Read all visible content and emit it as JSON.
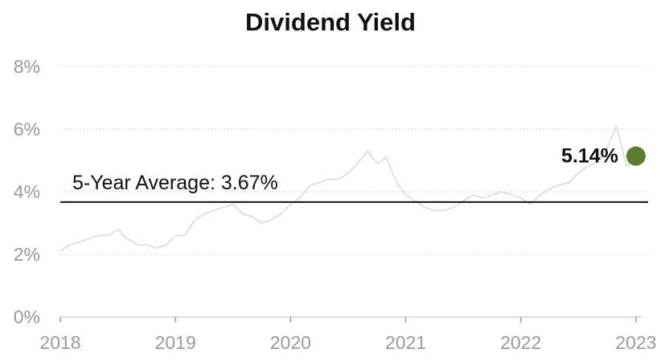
{
  "chart_data": {
    "type": "line",
    "title": "Dividend Yield",
    "xlabel": "",
    "ylabel": "",
    "x_ticks": [
      "2018",
      "2019",
      "2020",
      "2021",
      "2022",
      "2023"
    ],
    "y_ticks": [
      "0%",
      "2%",
      "4%",
      "6%",
      "8%"
    ],
    "xlim": [
      2018.0,
      2023.05
    ],
    "ylim": [
      0,
      8
    ],
    "grid": true,
    "legend": "none",
    "series": [
      {
        "x": [
          2018.0,
          2018.08,
          2018.17,
          2018.25,
          2018.33,
          2018.42,
          2018.5,
          2018.58,
          2018.67,
          2018.75,
          2018.83,
          2018.92,
          2019.0,
          2019.08,
          2019.17,
          2019.25,
          2019.33,
          2019.42,
          2019.5,
          2019.58,
          2019.67,
          2019.75,
          2019.83,
          2019.92,
          2020.0,
          2020.08,
          2020.17,
          2020.25,
          2020.33,
          2020.42,
          2020.5,
          2020.58,
          2020.67,
          2020.75,
          2020.83,
          2020.92,
          2021.0,
          2021.08,
          2021.17,
          2021.25,
          2021.33,
          2021.42,
          2021.5,
          2021.58,
          2021.67,
          2021.75,
          2021.83,
          2021.92,
          2022.0,
          2022.08,
          2022.17,
          2022.25,
          2022.33,
          2022.42,
          2022.5,
          2022.58,
          2022.67,
          2022.75,
          2022.83,
          2022.92,
          2023.0
        ],
        "values": [
          2.1,
          2.3,
          2.4,
          2.5,
          2.6,
          2.6,
          2.8,
          2.5,
          2.3,
          2.3,
          2.2,
          2.3,
          2.6,
          2.6,
          3.1,
          3.3,
          3.4,
          3.5,
          3.6,
          3.3,
          3.2,
          3.0,
          3.1,
          3.3,
          3.6,
          3.8,
          4.2,
          4.3,
          4.4,
          4.4,
          4.6,
          4.9,
          5.3,
          4.9,
          5.1,
          4.3,
          3.9,
          3.7,
          3.5,
          3.4,
          3.4,
          3.5,
          3.7,
          3.9,
          3.8,
          3.9,
          4.0,
          3.9,
          3.8,
          3.6,
          3.9,
          4.1,
          4.2,
          4.3,
          4.6,
          4.8,
          5.0,
          5.4,
          6.1,
          4.8,
          5.14
        ],
        "color": "#d9d9d9"
      }
    ],
    "reference_line": {
      "label": "5-Year Average: 3.67%",
      "value": 3.67,
      "color": "#111111"
    },
    "current_point": {
      "label": "5.14%",
      "x": 2023.0,
      "value": 5.14,
      "color": "#5c7c2e"
    }
  }
}
